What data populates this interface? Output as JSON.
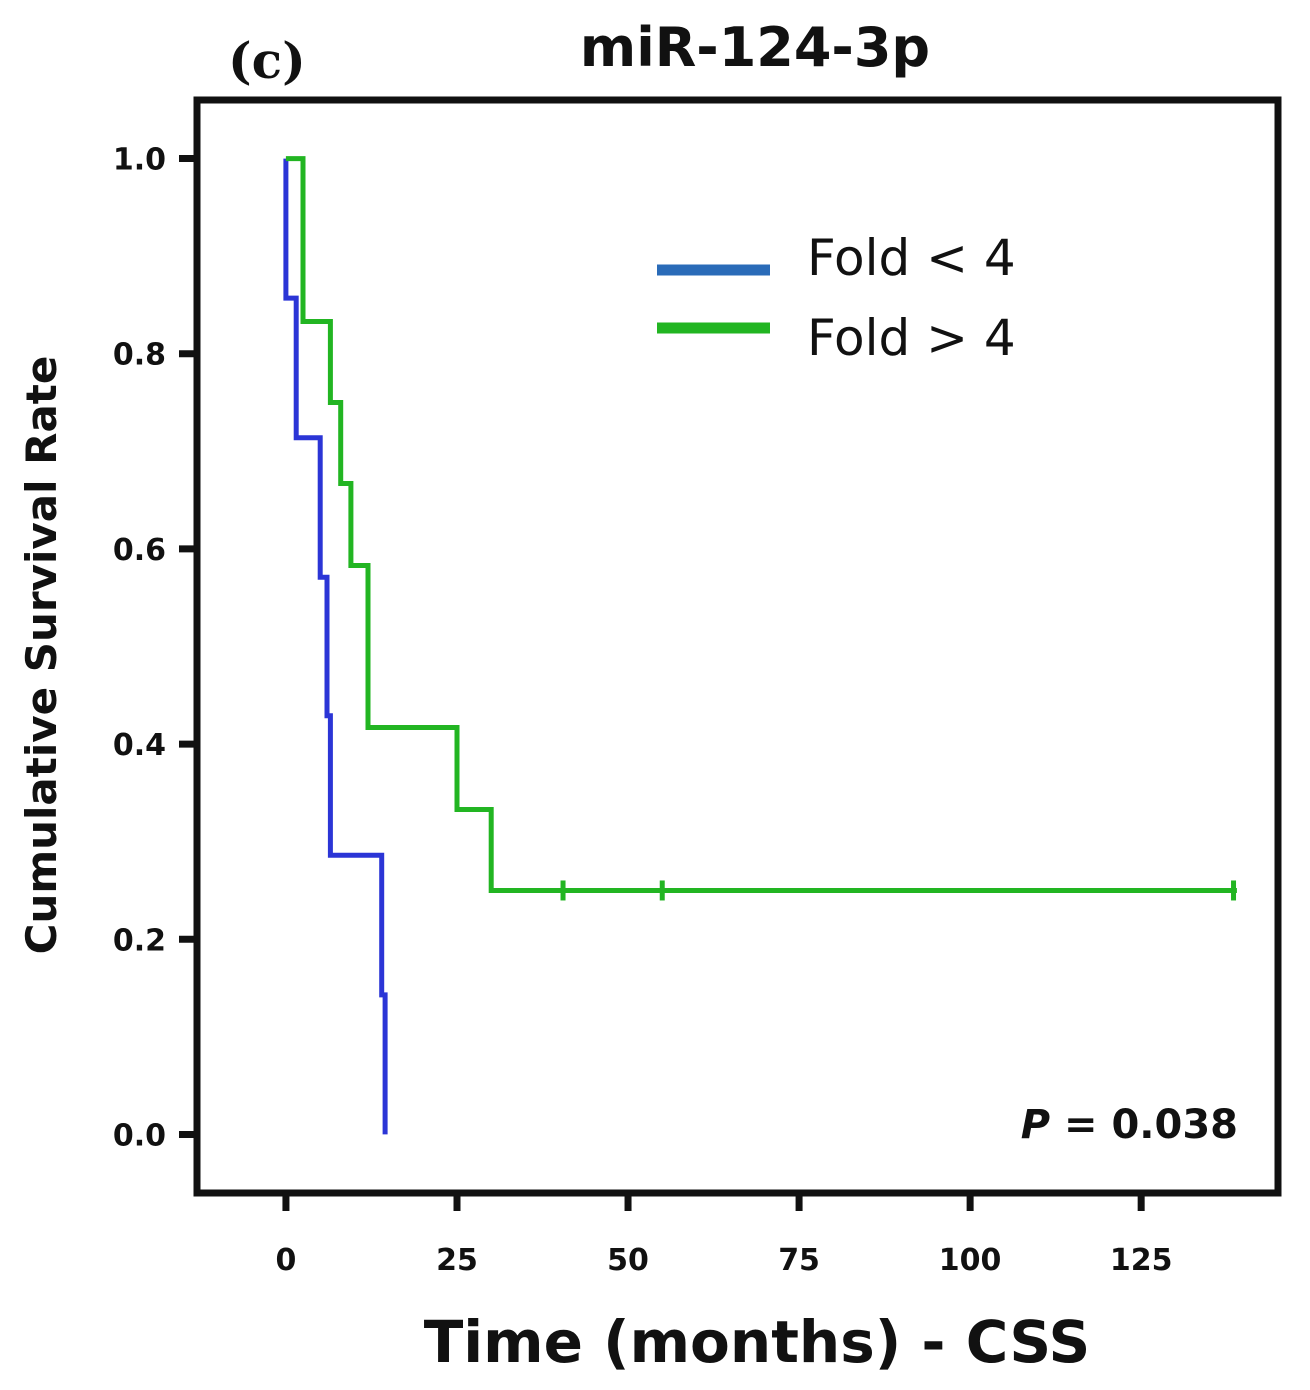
{
  "chart_data": {
    "type": "line",
    "subtype": "kaplan-meier-step",
    "panel_label": "(c)",
    "title": "miR-124-3p",
    "xlabel": "Time (months) - CSS",
    "ylabel": "Cumulative Survival Rate",
    "xlim": [
      -13,
      145
    ],
    "ylim": [
      -0.06,
      1.06
    ],
    "xticks": [
      0,
      25,
      50,
      75,
      100,
      125
    ],
    "yticks": [
      0.0,
      0.2,
      0.4,
      0.6,
      0.8,
      1.0
    ],
    "ytick_labels": [
      "0.0",
      "0.2",
      "0.4",
      "0.6",
      "0.8",
      "1.0"
    ],
    "legend_position": "upper-right",
    "annotation": {
      "p_prefix": "P",
      "p_rest": " = 0.038"
    },
    "series": [
      {
        "name": "Fold < 4",
        "color": "#2b35d6",
        "legend_color": "#2a6bb8",
        "steps": [
          [
            0,
            1.0
          ],
          [
            0,
            0.857
          ],
          [
            1.5,
            0.857
          ],
          [
            1.5,
            0.714
          ],
          [
            5,
            0.714
          ],
          [
            5,
            0.571
          ],
          [
            6,
            0.571
          ],
          [
            6,
            0.429
          ],
          [
            6.5,
            0.429
          ],
          [
            6.5,
            0.286
          ],
          [
            14,
            0.286
          ],
          [
            14,
            0.143
          ],
          [
            14.5,
            0.143
          ],
          [
            14.5,
            0.0
          ]
        ],
        "censors": []
      },
      {
        "name": "Fold > 4",
        "color": "#22b522",
        "legend_color": "#22b522",
        "steps": [
          [
            0,
            1.0
          ],
          [
            2.5,
            1.0
          ],
          [
            2.5,
            0.833
          ],
          [
            6.5,
            0.833
          ],
          [
            6.5,
            0.75
          ],
          [
            8,
            0.75
          ],
          [
            8,
            0.667
          ],
          [
            9.5,
            0.667
          ],
          [
            9.5,
            0.583
          ],
          [
            12,
            0.583
          ],
          [
            12,
            0.417
          ],
          [
            25,
            0.417
          ],
          [
            25,
            0.333
          ],
          [
            30,
            0.333
          ],
          [
            30,
            0.25
          ],
          [
            139,
            0.25
          ]
        ],
        "censors": [
          [
            40.5,
            0.25
          ],
          [
            55,
            0.25
          ],
          [
            138.5,
            0.25
          ]
        ]
      }
    ]
  }
}
